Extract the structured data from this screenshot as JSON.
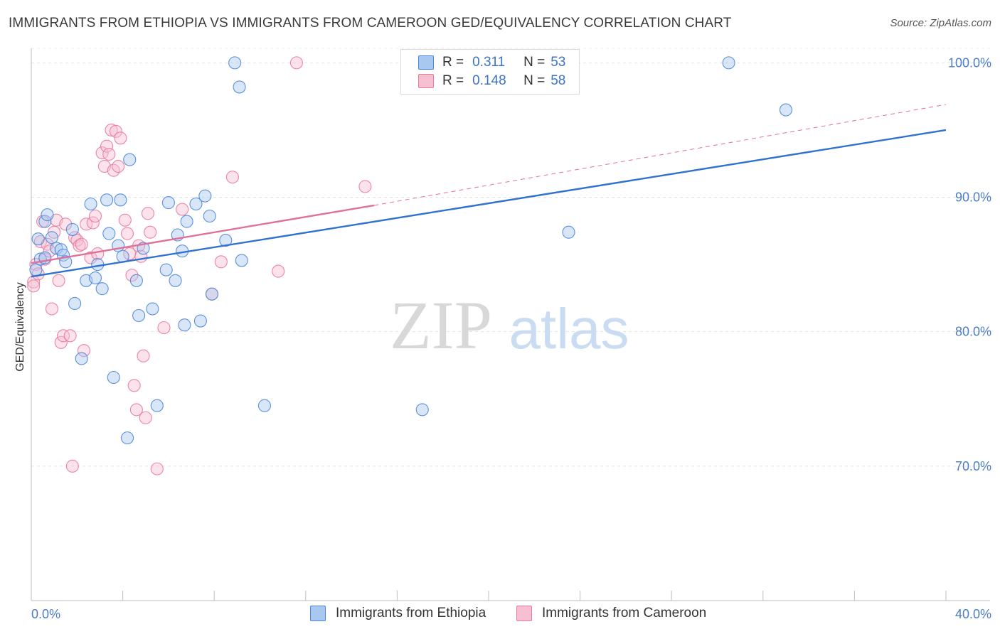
{
  "title": "IMMIGRANTS FROM ETHIOPIA VS IMMIGRANTS FROM CAMEROON GED/EQUIVALENCY CORRELATION CHART",
  "source": "Source: ZipAtlas.com",
  "watermark": {
    "zip": "ZIP",
    "atlas": "atlas"
  },
  "legend": {
    "series": [
      {
        "r_label": "R =",
        "r_value": "0.311",
        "n_label": "N =",
        "n_value": "53"
      },
      {
        "r_label": "R =",
        "r_value": "0.148",
        "n_label": "N =",
        "n_value": "58"
      }
    ]
  },
  "chart_data": {
    "type": "scatter",
    "title": "IMMIGRANTS FROM ETHIOPIA VS IMMIGRANTS FROM CAMEROON GED/EQUIVALENCY CORRELATION CHART",
    "xlabel": "",
    "ylabel": "GED/Equivalency",
    "xlim": [
      0,
      40
    ],
    "ylim": [
      60,
      101.5
    ],
    "x_tick_labels": [
      "0.0%",
      "40.0%"
    ],
    "y_ticks": [
      70,
      80,
      90,
      100
    ],
    "y_tick_labels": [
      "70.0%",
      "80.0%",
      "90.0%",
      "100.0%"
    ],
    "grid": true,
    "colors": {
      "ethiopia": "#4a86d8",
      "ethiopia_fill": "#a9c8f0",
      "cameroon": "#e87aa0",
      "cameroon_fill": "#f6bfd2"
    },
    "series": [
      {
        "name": "Immigrants from Ethiopia",
        "points": [
          [
            0.2,
            84.6
          ],
          [
            0.3,
            86.9
          ],
          [
            0.4,
            85.4
          ],
          [
            0.6,
            88.2
          ],
          [
            0.6,
            85.5
          ],
          [
            0.7,
            88.7
          ],
          [
            0.9,
            87.0
          ],
          [
            1.1,
            86.2
          ],
          [
            1.3,
            86.1
          ],
          [
            1.4,
            85.7
          ],
          [
            1.5,
            85.2
          ],
          [
            1.8,
            87.6
          ],
          [
            1.9,
            82.1
          ],
          [
            2.2,
            78.0
          ],
          [
            2.4,
            83.8
          ],
          [
            2.6,
            89.5
          ],
          [
            2.8,
            84.0
          ],
          [
            2.9,
            85.0
          ],
          [
            3.1,
            83.2
          ],
          [
            3.3,
            89.8
          ],
          [
            3.4,
            87.3
          ],
          [
            3.6,
            76.6
          ],
          [
            3.8,
            86.4
          ],
          [
            3.9,
            89.8
          ],
          [
            4.0,
            85.6
          ],
          [
            4.2,
            72.1
          ],
          [
            4.3,
            92.8
          ],
          [
            4.6,
            83.8
          ],
          [
            4.7,
            81.2
          ],
          [
            4.9,
            86.2
          ],
          [
            5.3,
            81.7
          ],
          [
            5.5,
            74.5
          ],
          [
            5.9,
            84.6
          ],
          [
            6.0,
            89.6
          ],
          [
            6.3,
            83.8
          ],
          [
            6.4,
            87.2
          ],
          [
            6.6,
            86.0
          ],
          [
            6.7,
            80.5
          ],
          [
            6.8,
            88.2
          ],
          [
            7.2,
            89.5
          ],
          [
            7.4,
            80.8
          ],
          [
            7.6,
            90.1
          ],
          [
            7.8,
            88.6
          ],
          [
            7.9,
            82.8
          ],
          [
            8.5,
            86.8
          ],
          [
            8.9,
            100.0
          ],
          [
            9.1,
            98.2
          ],
          [
            9.2,
            85.3
          ],
          [
            10.2,
            74.5
          ],
          [
            17.1,
            74.2
          ],
          [
            23.5,
            87.4
          ],
          [
            30.5,
            100.0
          ],
          [
            33.0,
            96.5
          ]
        ]
      },
      {
        "name": "Immigrants from Cameroon",
        "points": [
          [
            0.1,
            83.7
          ],
          [
            0.2,
            85.0
          ],
          [
            0.3,
            84.3
          ],
          [
            0.4,
            86.7
          ],
          [
            0.5,
            88.2
          ],
          [
            0.6,
            85.4
          ],
          [
            0.7,
            86.5
          ],
          [
            0.8,
            86.0
          ],
          [
            0.9,
            81.7
          ],
          [
            1.0,
            87.4
          ],
          [
            1.1,
            88.3
          ],
          [
            1.2,
            83.8
          ],
          [
            1.3,
            79.2
          ],
          [
            1.4,
            79.7
          ],
          [
            1.5,
            88.0
          ],
          [
            1.7,
            79.7
          ],
          [
            1.8,
            70.0
          ],
          [
            1.9,
            87.0
          ],
          [
            2.0,
            86.8
          ],
          [
            2.1,
            86.4
          ],
          [
            2.2,
            86.5
          ],
          [
            2.3,
            78.6
          ],
          [
            2.4,
            88.0
          ],
          [
            2.6,
            85.5
          ],
          [
            2.7,
            88.1
          ],
          [
            2.8,
            88.6
          ],
          [
            2.9,
            85.8
          ],
          [
            3.1,
            93.3
          ],
          [
            3.2,
            92.3
          ],
          [
            3.3,
            93.8
          ],
          [
            3.4,
            93.2
          ],
          [
            3.5,
            95.0
          ],
          [
            3.6,
            92.0
          ],
          [
            3.7,
            94.9
          ],
          [
            3.8,
            92.3
          ],
          [
            3.9,
            94.4
          ],
          [
            4.1,
            88.3
          ],
          [
            4.2,
            87.3
          ],
          [
            4.3,
            85.8
          ],
          [
            4.4,
            84.2
          ],
          [
            4.5,
            76.0
          ],
          [
            4.6,
            74.2
          ],
          [
            4.7,
            86.4
          ],
          [
            4.8,
            85.6
          ],
          [
            4.9,
            78.2
          ],
          [
            5.0,
            73.6
          ],
          [
            5.1,
            88.8
          ],
          [
            5.2,
            87.4
          ],
          [
            5.5,
            69.8
          ],
          [
            5.8,
            80.3
          ],
          [
            6.6,
            89.1
          ],
          [
            7.9,
            82.8
          ],
          [
            8.3,
            85.2
          ],
          [
            8.8,
            91.5
          ],
          [
            10.8,
            84.5
          ],
          [
            11.6,
            100.0
          ],
          [
            14.6,
            90.8
          ],
          [
            0.1,
            83.4
          ]
        ]
      }
    ],
    "trendlines": [
      {
        "series": "Immigrants from Ethiopia",
        "x": [
          0,
          40
        ],
        "y": [
          84.1,
          95.0
        ],
        "style": "solid"
      },
      {
        "series": "Immigrants from Cameroon",
        "x": [
          0,
          15
        ],
        "y": [
          85.1,
          89.4
        ],
        "style": "solid"
      },
      {
        "series": "Immigrants from Cameroon",
        "x": [
          15,
          40
        ],
        "y": [
          89.4,
          96.9
        ],
        "style": "dashed"
      }
    ]
  }
}
